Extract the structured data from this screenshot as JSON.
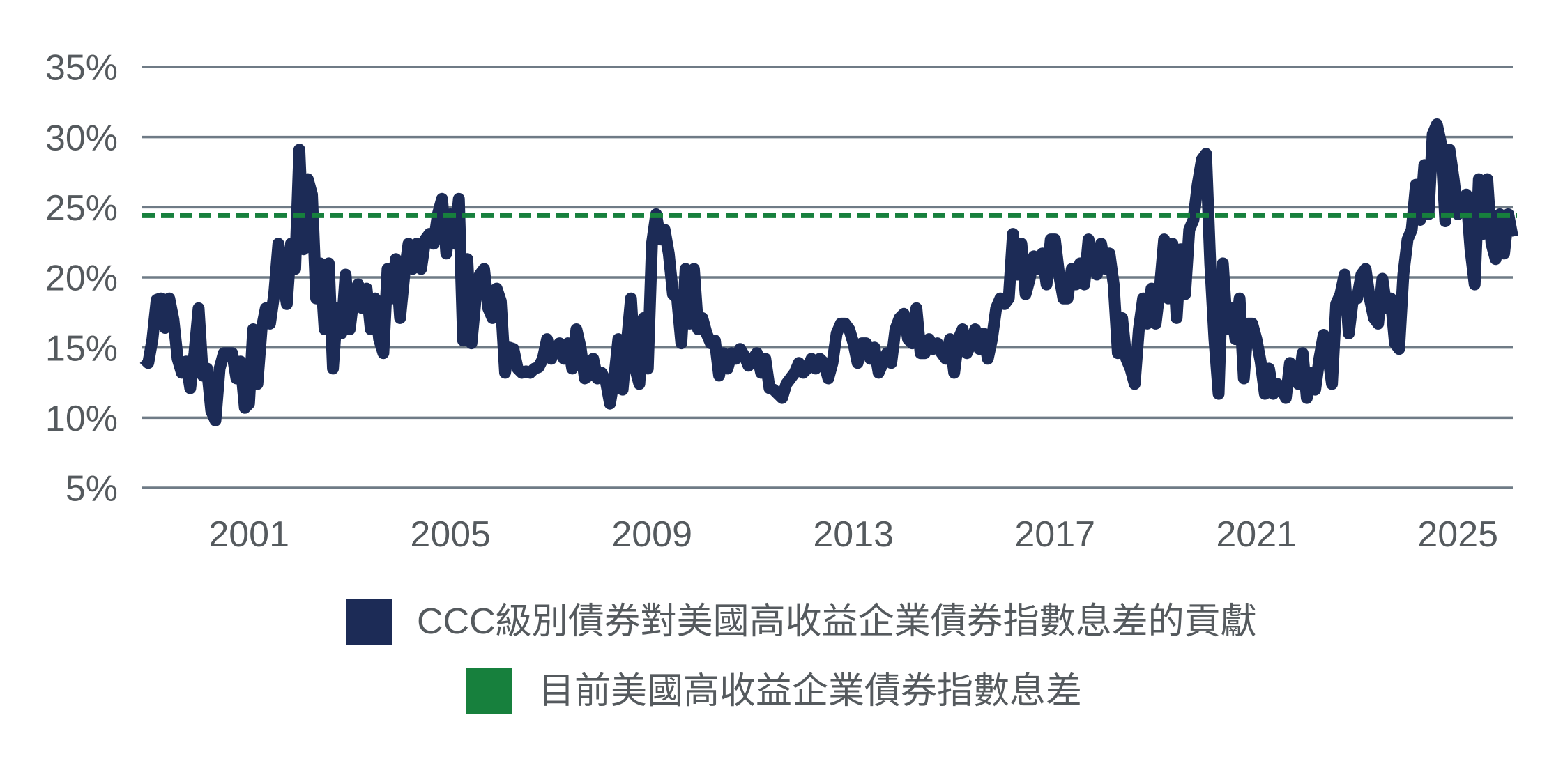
{
  "chart_data": {
    "type": "line",
    "xlim": [
      1998.88,
      2026.09
    ],
    "ylim": [
      5,
      35
    ],
    "grid": true,
    "legend_position": "bottom",
    "x_ticks": [
      {
        "value": 2001,
        "label": "2001"
      },
      {
        "value": 2005,
        "label": "2005"
      },
      {
        "value": 2009,
        "label": "2009"
      },
      {
        "value": 2013,
        "label": "2013"
      },
      {
        "value": 2017,
        "label": "2017"
      },
      {
        "value": 2021,
        "label": "2021"
      },
      {
        "value": 2025,
        "label": "2025"
      }
    ],
    "y_ticks": [
      {
        "value": 35,
        "label": "35%"
      },
      {
        "value": 30,
        "label": "30%"
      },
      {
        "value": 25,
        "label": "25%"
      },
      {
        "value": 20,
        "label": "20%"
      },
      {
        "value": 15,
        "label": "15%"
      },
      {
        "value": 10,
        "label": "10%"
      },
      {
        "value": 5,
        "label": "5%"
      }
    ],
    "series": [
      {
        "name": "CCC級別債券對美國高收益企業債券指數息差的貢獻",
        "color": "#1c2b56",
        "style": "solid",
        "start": "1998-12",
        "frequency": "monthly",
        "unit": "%",
        "values": [
          14.2,
          13.9,
          15.6,
          18.4,
          18.5,
          16.4,
          18.5,
          17.0,
          14.2,
          13.2,
          14.0,
          12.1,
          14.6,
          17.8,
          13.0,
          13.5,
          10.5,
          9.8,
          13.5,
          14.6,
          14.6,
          14.6,
          12.8,
          14.0,
          10.7,
          11.0,
          16.3,
          12.4,
          16.3,
          17.8,
          16.7,
          18.8,
          22.4,
          20.0,
          18.1,
          22.4,
          20.6,
          29.1,
          22.0,
          27.0,
          25.9,
          18.5,
          21.0,
          16.3,
          21.0,
          13.5,
          17.8,
          16.0,
          20.2,
          16.3,
          18.8,
          19.5,
          17.8,
          19.2,
          16.3,
          18.5,
          15.6,
          14.6,
          20.6,
          18.5,
          21.3,
          17.1,
          20.2,
          22.4,
          20.6,
          22.4,
          20.6,
          22.7,
          23.1,
          22.4,
          24.5,
          25.6,
          21.7,
          24.5,
          22.4,
          25.6,
          15.5,
          21.3,
          15.3,
          18.5,
          20.2,
          20.6,
          17.8,
          17.1,
          19.2,
          18.3,
          13.2,
          15.0,
          14.9,
          13.5,
          13.2,
          13.3,
          13.2,
          13.5,
          13.6,
          14.2,
          15.6,
          14.2,
          14.9,
          15.3,
          14.2,
          15.3,
          13.5,
          16.3,
          15.0,
          12.8,
          13.0,
          14.2,
          12.8,
          13.2,
          12.6,
          11.0,
          12.8,
          15.6,
          12.0,
          15.3,
          18.5,
          13.5,
          12.4,
          17.1,
          13.5,
          22.4,
          24.5,
          22.7,
          23.4,
          21.7,
          18.8,
          18.5,
          15.3,
          20.6,
          16.7,
          20.6,
          16.3,
          17.1,
          16.0,
          15.3,
          15.5,
          13.0,
          14.6,
          13.5,
          14.6,
          14.2,
          14.9,
          14.4,
          13.7,
          14.2,
          14.6,
          13.2,
          14.2,
          12.1,
          12.0,
          11.7,
          11.4,
          12.4,
          12.8,
          13.2,
          13.9,
          13.2,
          13.5,
          14.2,
          13.5,
          14.2,
          13.9,
          12.8,
          13.9,
          16.0,
          16.7,
          16.7,
          16.3,
          15.3,
          13.9,
          15.3,
          15.3,
          14.2,
          15.0,
          13.2,
          13.9,
          14.6,
          13.9,
          16.3,
          17.1,
          17.4,
          15.6,
          15.3,
          17.8,
          14.6,
          14.6,
          15.6,
          14.9,
          15.3,
          14.6,
          14.2,
          15.6,
          13.2,
          15.6,
          16.3,
          14.6,
          15.3,
          16.3,
          14.9,
          16.0,
          14.2,
          15.6,
          17.8,
          18.5,
          18.1,
          18.5,
          23.1,
          20.2,
          22.4,
          18.8,
          19.9,
          21.5,
          20.6,
          21.7,
          19.5,
          22.7,
          22.7,
          20.2,
          18.5,
          18.5,
          20.6,
          19.5,
          21.0,
          19.5,
          22.7,
          21.0,
          20.2,
          22.4,
          20.6,
          21.7,
          19.5,
          14.6,
          17.1,
          14.2,
          13.5,
          12.4,
          16.3,
          18.5,
          16.7,
          19.2,
          16.7,
          19.2,
          22.7,
          18.5,
          22.4,
          17.1,
          22.0,
          18.8,
          23.4,
          24.1,
          26.6,
          28.4,
          28.8,
          21.0,
          15.6,
          11.7,
          21.0,
          16.3,
          17.8,
          15.6,
          18.5,
          12.8,
          16.7,
          16.7,
          15.6,
          14.0,
          11.7,
          13.5,
          11.7,
          12.4,
          12.1,
          11.4,
          13.9,
          13.5,
          12.4,
          14.6,
          11.4,
          13.2,
          12.0,
          14.2,
          15.9,
          14.6,
          12.4,
          18.1,
          18.8,
          20.2,
          16.0,
          18.5,
          18.5,
          20.2,
          20.6,
          18.5,
          17.1,
          16.7,
          19.9,
          17.8,
          18.5,
          15.3,
          14.9,
          20.2,
          22.7,
          23.4,
          26.6,
          24.1,
          28.0,
          24.5,
          30.2,
          30.9,
          29.5,
          24.0,
          29.1,
          27.0,
          24.5,
          24.9,
          25.9,
          22.0,
          19.5,
          27.0,
          23.1,
          27.0,
          22.4,
          21.3,
          24.5,
          21.7,
          24.5,
          22.9
        ]
      },
      {
        "name": "目前美國高收益企業債券指數息差",
        "color": "#17803d",
        "style": "dashed",
        "unit": "%",
        "value": 24.4
      }
    ]
  }
}
